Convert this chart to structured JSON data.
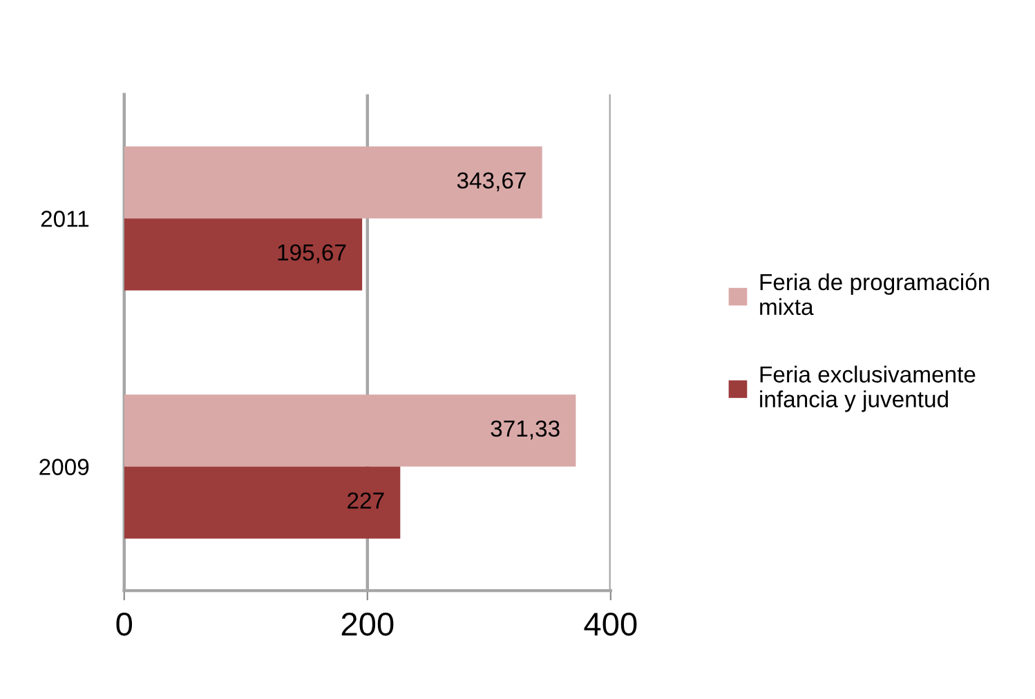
{
  "chart_data": {
    "type": "bar",
    "orientation": "horizontal",
    "categories": [
      "2011",
      "2009"
    ],
    "series": [
      {
        "name": "Feria de programación\nmixta",
        "color": "#d9a9a8",
        "values": [
          343.67,
          371.33
        ],
        "value_labels": [
          "343,67",
          "371,33"
        ]
      },
      {
        "name": "Feria exclusivamente\ninfancia y juventud",
        "color": "#9c3c3b",
        "values": [
          195.67,
          227
        ],
        "value_labels": [
          "195,67",
          "227"
        ]
      }
    ],
    "xlim": [
      0,
      400
    ],
    "xticks": [
      0,
      200,
      400
    ],
    "grid": "x",
    "legend": "right"
  }
}
